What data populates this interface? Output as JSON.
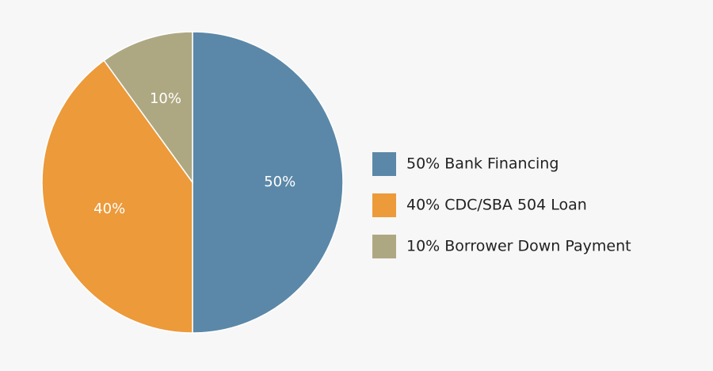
{
  "chart_data": {
    "type": "pie",
    "categories": [
      "50% Bank Financing",
      "40% CDC/SBA 504 Loan",
      "10% Borrower Down Payment"
    ],
    "values": [
      50,
      40,
      10
    ],
    "value_labels": [
      "50%",
      "40%",
      "10%"
    ],
    "colors": [
      "#5b88a8",
      "#ec9a3a",
      "#aea882"
    ],
    "legend": "right"
  }
}
